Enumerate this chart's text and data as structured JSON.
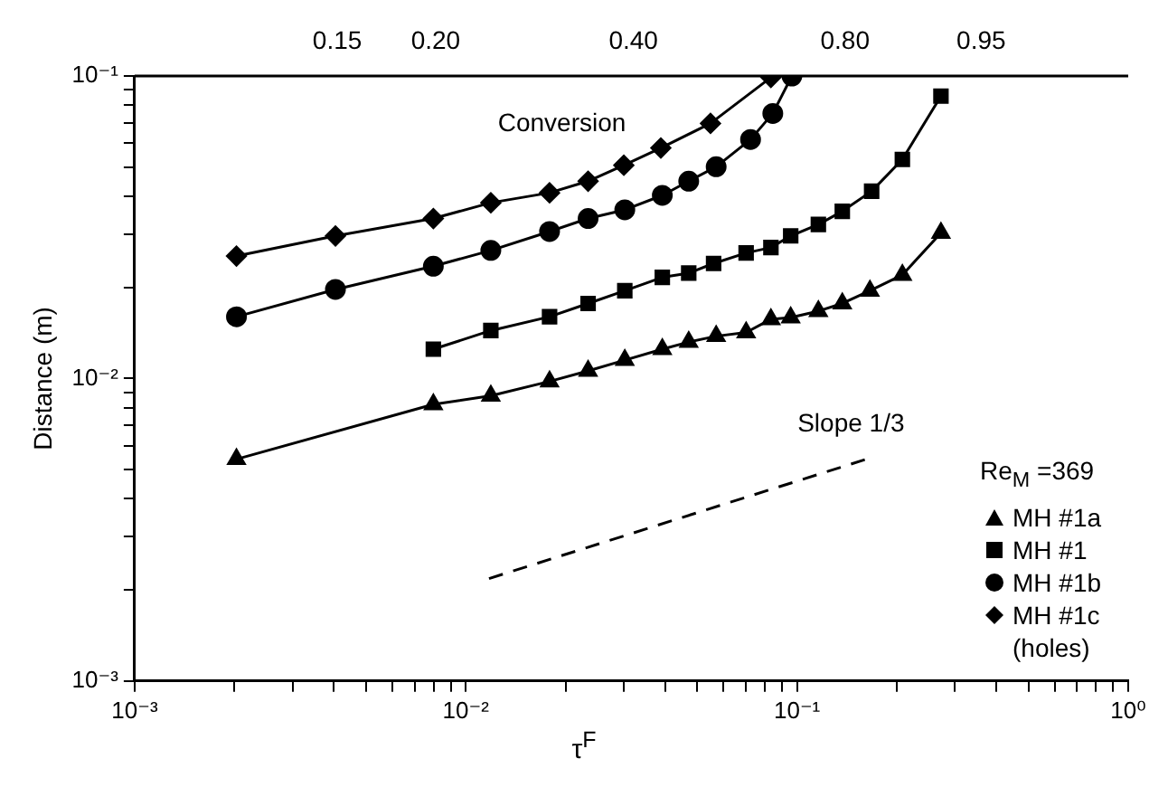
{
  "chart_data": {
    "type": "line",
    "log": "xy",
    "grid": false,
    "legend": "bottom right",
    "legend_title": "Re$_{M}$ =369",
    "xlabel": "τ$^{F}$",
    "ylabel": "Distance (m)",
    "xlim": [
      0.001,
      1
    ],
    "ylim": [
      0.001,
      0.1
    ],
    "xticks": [
      {
        "value": 0.001,
        "label": "10⁻³"
      },
      {
        "value": 0.002,
        "label": null
      },
      {
        "value": 0.003,
        "label": null
      },
      {
        "value": 0.004,
        "label": null
      },
      {
        "value": 0.005,
        "label": null
      },
      {
        "value": 0.006,
        "label": null
      },
      {
        "value": 0.007,
        "label": null
      },
      {
        "value": 0.008,
        "label": null
      },
      {
        "value": 0.009,
        "label": null
      },
      {
        "value": 0.01,
        "label": "10⁻²"
      },
      {
        "value": 0.02,
        "label": null
      },
      {
        "value": 0.03,
        "label": null
      },
      {
        "value": 0.04,
        "label": null
      },
      {
        "value": 0.05,
        "label": null
      },
      {
        "value": 0.06,
        "label": null
      },
      {
        "value": 0.07,
        "label": null
      },
      {
        "value": 0.08,
        "label": null
      },
      {
        "value": 0.09,
        "label": null
      },
      {
        "value": 0.1,
        "label": "10⁻¹"
      },
      {
        "value": 0.2,
        "label": null
      },
      {
        "value": 0.3,
        "label": null
      },
      {
        "value": 0.4,
        "label": null
      },
      {
        "value": 0.5,
        "label": null
      },
      {
        "value": 0.6,
        "label": null
      },
      {
        "value": 0.7,
        "label": null
      },
      {
        "value": 0.8,
        "label": null
      },
      {
        "value": 0.9,
        "label": null
      },
      {
        "value": 1,
        "label": "10⁰"
      }
    ],
    "yticks": [
      {
        "value": 0.001,
        "label": "10⁻³"
      },
      {
        "value": 0.002,
        "label": null
      },
      {
        "value": 0.003,
        "label": null
      },
      {
        "value": 0.004,
        "label": null
      },
      {
        "value": 0.005,
        "label": null
      },
      {
        "value": 0.006,
        "label": null
      },
      {
        "value": 0.007,
        "label": null
      },
      {
        "value": 0.008,
        "label": null
      },
      {
        "value": 0.009,
        "label": null
      },
      {
        "value": 0.01,
        "label": "10⁻²"
      },
      {
        "value": 0.02,
        "label": null
      },
      {
        "value": 0.03,
        "label": null
      },
      {
        "value": 0.04,
        "label": null
      },
      {
        "value": 0.05,
        "label": null
      },
      {
        "value": 0.06,
        "label": null
      },
      {
        "value": 0.07,
        "label": null
      },
      {
        "value": 0.08,
        "label": null
      },
      {
        "value": 0.09,
        "label": null
      },
      {
        "value": 0.1,
        "label": "10⁻¹"
      }
    ],
    "annotations": [
      "0.15",
      "0.20",
      "0.40",
      "0.80",
      "0.95",
      "Conversion",
      "Slope 1/3"
    ],
    "series": [
      {
        "name": "MH #1a",
        "color": "#000000",
        "marker": "triangle",
        "x": [
          0.00203,
          0.00798,
          0.0119,
          0.0179,
          0.0234,
          0.0302,
          0.0392,
          0.0471,
          0.057,
          0.0702,
          0.0834,
          0.0957,
          0.116,
          0.137,
          0.166,
          0.208,
          0.272
        ],
        "values": [
          0.00541,
          0.00821,
          0.00877,
          0.00978,
          0.0106,
          0.0115,
          0.0125,
          0.0132,
          0.0138,
          0.0142,
          0.0157,
          0.0159,
          0.0167,
          0.0177,
          0.0195,
          0.022,
          0.0303
        ]
      },
      {
        "name": "MH #1",
        "color": "#000000",
        "marker": "square",
        "x": [
          0.00798,
          0.0119,
          0.0179,
          0.0234,
          0.0302,
          0.0392,
          0.0471,
          0.056,
          0.0702,
          0.0834,
          0.0957,
          0.116,
          0.137,
          0.168,
          0.208,
          0.272
        ],
        "values": [
          0.0125,
          0.0144,
          0.016,
          0.0177,
          0.0195,
          0.0216,
          0.0223,
          0.024,
          0.026,
          0.0271,
          0.0296,
          0.0323,
          0.0357,
          0.0416,
          0.053,
          0.0858
        ]
      },
      {
        "name": "MH #1b",
        "color": "#000000",
        "marker": "circle",
        "x": [
          0.00203,
          0.00404,
          0.00798,
          0.0119,
          0.0179,
          0.0234,
          0.0302,
          0.0392,
          0.0471,
          0.057,
          0.0724,
          0.0845,
          0.0965
        ],
        "values": [
          0.016,
          0.0197,
          0.0235,
          0.0265,
          0.0306,
          0.0338,
          0.0361,
          0.0403,
          0.0449,
          0.0501,
          0.0617,
          0.0752,
          0.1
        ]
      },
      {
        "name": "MH #1c (holes)",
        "color": "#000000",
        "marker": "diamond",
        "x": [
          0.00203,
          0.00404,
          0.00798,
          0.0119,
          0.0179,
          0.0234,
          0.03,
          0.0388,
          0.0548,
          0.0834
        ],
        "values": [
          0.0254,
          0.0296,
          0.0338,
          0.0381,
          0.0411,
          0.0449,
          0.0507,
          0.0578,
          0.0697,
          0.0989
        ]
      },
      {
        "color": "#000000",
        "marker": "none",
        "line_style": "dashed",
        "x": [
          0.01175,
          0.161
        ],
        "values": [
          0.00218,
          0.0054
        ]
      }
    ]
  }
}
